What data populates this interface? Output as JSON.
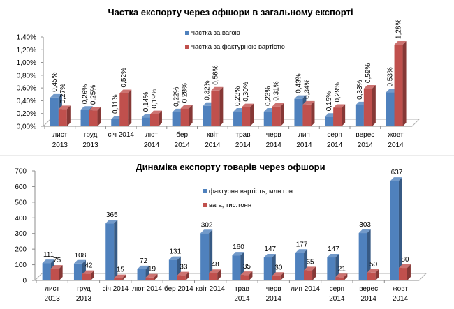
{
  "colors": {
    "blue": "#4f81bd",
    "red": "#c0504d"
  },
  "chart_data": [
    {
      "type": "bar",
      "title": "Частка експорту через офшори в загальному експорті",
      "categories": [
        [
          "лист",
          "2013"
        ],
        [
          "груд",
          "2013"
        ],
        [
          "січ 2014",
          ""
        ],
        [
          "лют",
          "2014"
        ],
        [
          "бер",
          "2014"
        ],
        [
          "квіт",
          "2014"
        ],
        [
          "трав",
          "2014"
        ],
        [
          "черв",
          "2014"
        ],
        [
          "лип",
          "2014"
        ],
        [
          "серп",
          "2014"
        ],
        [
          "верес",
          "2014"
        ],
        [
          "жовт",
          "2014"
        ]
      ],
      "ylim": [
        0,
        1.4
      ],
      "yticks": [
        "0,00%",
        "0,20%",
        "0,40%",
        "0,60%",
        "0,80%",
        "1,00%",
        "1,20%",
        "1,40%"
      ],
      "legend": "top-center",
      "series": [
        {
          "name": "частка за вагою",
          "color": "#4f81bd",
          "values": [
            0.45,
            0.26,
            0.11,
            0.14,
            0.22,
            0.32,
            0.23,
            0.23,
            0.43,
            0.15,
            0.33,
            0.53
          ],
          "labels": [
            "0,45%",
            "0,26%",
            "0,11%",
            "0,14%",
            "0,22%",
            "0,32%",
            "0,23%",
            "0,23%",
            "0,43%",
            "0,15%",
            "0,33%",
            "0,53%"
          ]
        },
        {
          "name": "частка за фактурною вартістю",
          "color": "#c0504d",
          "values": [
            0.27,
            0.25,
            0.52,
            0.19,
            0.28,
            0.56,
            0.3,
            0.31,
            0.34,
            0.29,
            0.59,
            1.28
          ],
          "labels": [
            "0,27%",
            "0,25%",
            "0,52%",
            "0,19%",
            "0,28%",
            "0,56%",
            "0,30%",
            "0,31%",
            "0,34%",
            "0,29%",
            "0,59%",
            "1,28%"
          ]
        }
      ]
    },
    {
      "type": "bar",
      "title": "Динаміка експорту товарів через офшори",
      "categories": [
        [
          "лист",
          "2013"
        ],
        [
          "груд",
          "2013"
        ],
        [
          "січ 2014",
          ""
        ],
        [
          "лют 2014",
          ""
        ],
        [
          "бер 2014",
          ""
        ],
        [
          "квіт 2014",
          ""
        ],
        [
          "трав",
          "2014"
        ],
        [
          "черв",
          "2014"
        ],
        [
          "лип 2014",
          ""
        ],
        [
          "серп",
          "2014"
        ],
        [
          "верес",
          "2014"
        ],
        [
          "жовт",
          "2014"
        ]
      ],
      "ylim": [
        0,
        700
      ],
      "yticks": [
        "0",
        "100",
        "200",
        "300",
        "400",
        "500",
        "600",
        "700"
      ],
      "legend": "top-center",
      "series": [
        {
          "name": "фактурна вартість, млн грн",
          "color": "#4f81bd",
          "values": [
            111,
            108,
            365,
            72,
            131,
            302,
            160,
            147,
            177,
            147,
            303,
            637
          ],
          "labels": [
            "111",
            "108",
            "365",
            "72",
            "131",
            "302",
            "160",
            "147",
            "177",
            "147",
            "303",
            "637"
          ]
        },
        {
          "name": "вага, тис.тонн",
          "color": "#c0504d",
          "values": [
            75,
            42,
            15,
            19,
            33,
            48,
            35,
            30,
            65,
            21,
            50,
            80
          ],
          "labels": [
            "75",
            "42",
            "15",
            "19",
            "33",
            "48",
            "35",
            "30",
            "65",
            "21",
            "50",
            "80"
          ]
        }
      ]
    }
  ]
}
